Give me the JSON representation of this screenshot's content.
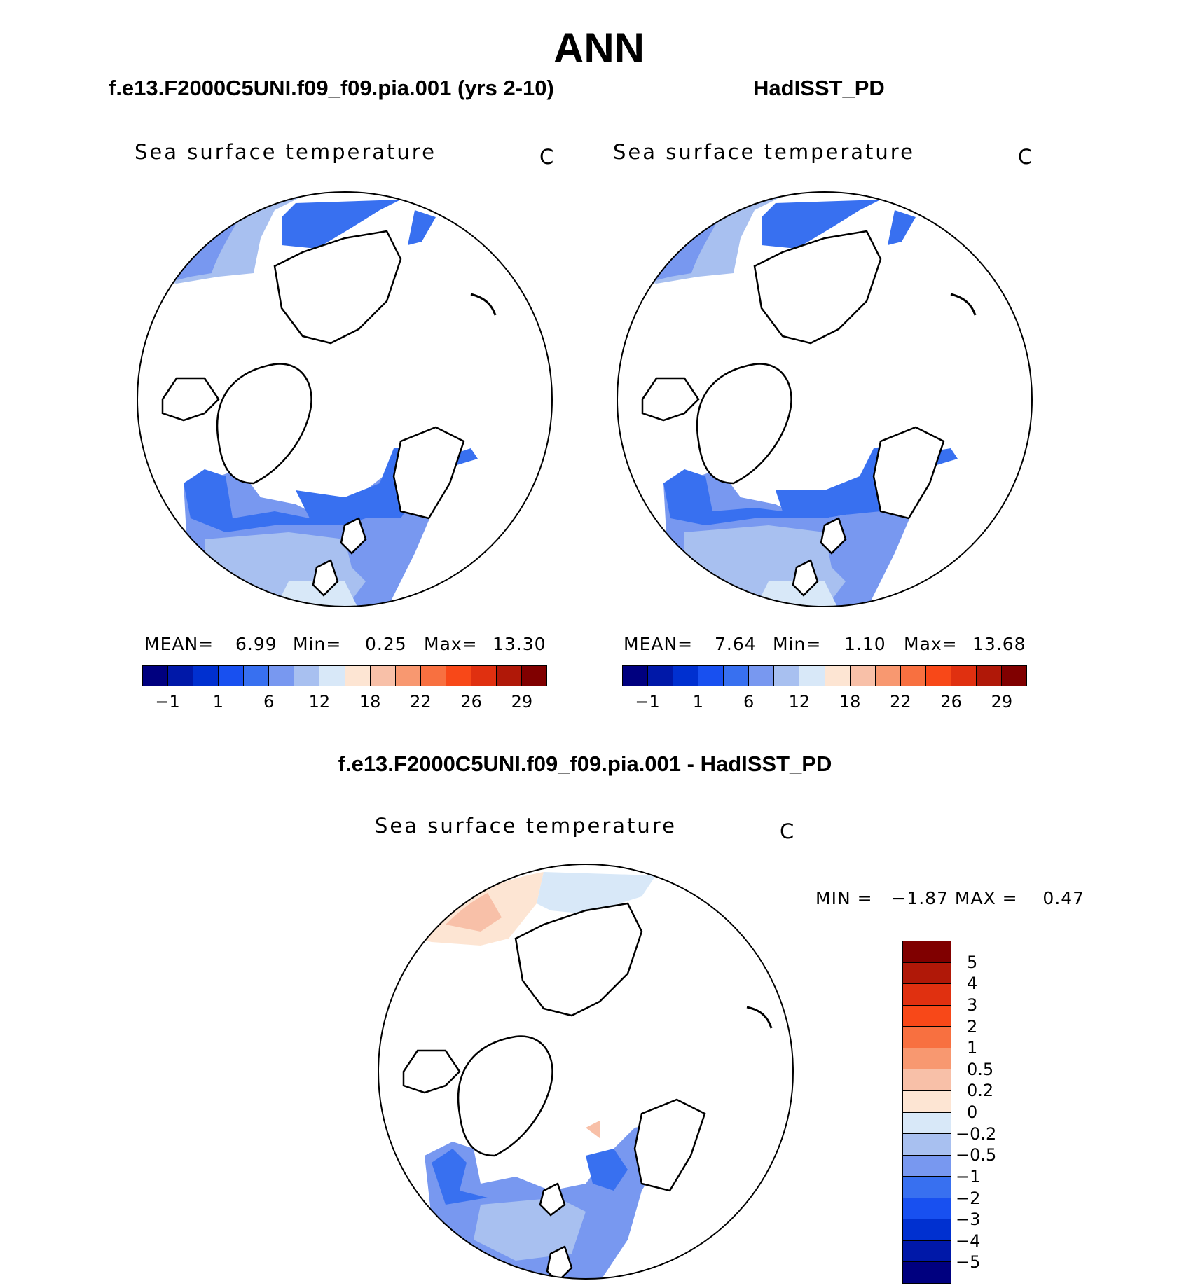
{
  "main_title": "ANN",
  "panels": [
    {
      "header": "f.e13.F2000C5UNI.f09_f09.pia.001 (yrs 2-10)",
      "variable": "Sea surface temperature",
      "units": "C",
      "stats": {
        "mean_label": "MEAN=",
        "mean": "6.99",
        "min_label": "Min=",
        "min": "0.25",
        "max_label": "Max=",
        "max": "13.30"
      }
    },
    {
      "header": "HadISST_PD",
      "variable": "Sea surface temperature",
      "units": "C",
      "stats": {
        "mean_label": "MEAN=",
        "mean": "7.64",
        "min_label": "Min=",
        "min": "1.10",
        "max_label": "Max=",
        "max": "13.68"
      }
    }
  ],
  "diff_panel": {
    "header": "f.e13.F2000C5UNI.f09_f09.pia.001 - HadISST_PD",
    "variable": "Sea surface temperature",
    "units": "C",
    "stats": "MIN =   −1.87 MAX =    0.47"
  },
  "colorbar_abs": {
    "colors": [
      "#00007f",
      "#0018a8",
      "#0030d0",
      "#1850f0",
      "#3870f0",
      "#7898f0",
      "#a8c0f0",
      "#d8e8f8",
      "#fde5d3",
      "#f8c0a8",
      "#f89870",
      "#f87040",
      "#f84818",
      "#e03010",
      "#b01808",
      "#800000"
    ],
    "ticks": [
      "−1",
      "1",
      "6",
      "12",
      "18",
      "22",
      "26",
      "29"
    ]
  },
  "colorbar_diff": {
    "colors": [
      "#800000",
      "#b01808",
      "#e03010",
      "#f84818",
      "#f87040",
      "#f89870",
      "#f8c0a8",
      "#fde5d3",
      "#d8e8f8",
      "#a8c0f0",
      "#7898f0",
      "#3870f0",
      "#1850f0",
      "#0030d0",
      "#0018a8",
      "#00007f"
    ],
    "ticks": [
      "5",
      "4",
      "3",
      "2",
      "1",
      "0.5",
      "0.2",
      "0",
      "−0.2",
      "−0.5",
      "−1",
      "−2",
      "−3",
      "−4",
      "−5"
    ]
  }
}
